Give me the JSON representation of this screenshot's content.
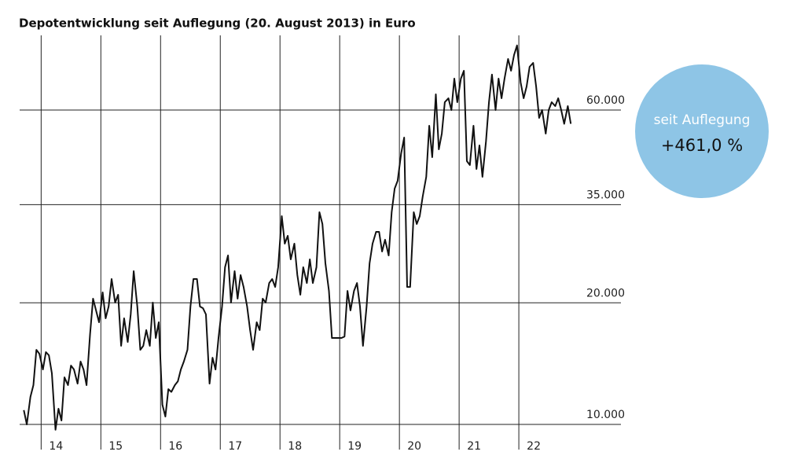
{
  "chart_data": {
    "type": "line",
    "title": "Depotentwicklung seit Auflegung (20. August 2013) in Euro",
    "annotations": [
      "seit Auflegung",
      "+461,0 %"
    ],
    "yscale": "log",
    "grid": true,
    "color": "#111111",
    "badge_color": "#8ec5e6",
    "xlim": [
      2013.64,
      2023.71
    ],
    "ylim": [
      9650,
      91800
    ],
    "xticks": [
      {
        "value": 2014,
        "label": "14"
      },
      {
        "value": 2015,
        "label": "15"
      },
      {
        "value": 2016,
        "label": "16"
      },
      {
        "value": 2017,
        "label": "17"
      },
      {
        "value": 2018,
        "label": "18"
      },
      {
        "value": 2019,
        "label": "19"
      },
      {
        "value": 2020,
        "label": "20"
      },
      {
        "value": 2021,
        "label": "21"
      },
      {
        "value": 2022,
        "label": "22"
      }
    ],
    "yticks": [
      {
        "value": 10000,
        "label": "10.000"
      },
      {
        "value": 20000,
        "label": "20.000"
      },
      {
        "value": 35000,
        "label": "35.000"
      },
      {
        "value": 60000,
        "label": "60.000"
      }
    ],
    "x": [
      2013.71,
      2013.76,
      2013.82,
      2013.87,
      2013.92,
      2013.97,
      2014.03,
      2014.08,
      2014.13,
      2014.18,
      2014.24,
      2014.29,
      2014.34,
      2014.39,
      2014.45,
      2014.5,
      2014.55,
      2014.61,
      2014.66,
      2014.71,
      2014.76,
      2014.82,
      2014.87,
      2014.92,
      2014.97,
      2015.03,
      2015.08,
      2015.13,
      2015.18,
      2015.24,
      2015.29,
      2015.34,
      2015.39,
      2015.45,
      2015.5,
      2015.55,
      2015.61,
      2015.66,
      2015.71,
      2015.76,
      2015.82,
      2015.87,
      2015.92,
      2015.97,
      2016.03,
      2016.08,
      2016.13,
      2016.18,
      2016.24,
      2016.29,
      2016.34,
      2016.39,
      2016.45,
      2016.5,
      2016.55,
      2016.61,
      2016.66,
      2016.71,
      2016.76,
      2016.82,
      2016.87,
      2016.92,
      2016.97,
      2017.03,
      2017.08,
      2017.13,
      2017.18,
      2017.24,
      2017.29,
      2017.34,
      2017.39,
      2017.45,
      2017.5,
      2017.55,
      2017.61,
      2017.66,
      2017.71,
      2017.76,
      2017.82,
      2017.87,
      2017.92,
      2017.97,
      2018.03,
      2018.08,
      2018.13,
      2018.18,
      2018.24,
      2018.29,
      2018.34,
      2018.39,
      2018.45,
      2018.5,
      2018.55,
      2018.61,
      2018.66,
      2018.71,
      2018.76,
      2018.82,
      2018.87,
      2018.92,
      2018.97,
      2019.03,
      2019.08,
      2019.13,
      2019.18,
      2019.24,
      2019.29,
      2019.34,
      2019.39,
      2019.45,
      2019.5,
      2019.55,
      2019.61,
      2019.66,
      2019.71,
      2019.76,
      2019.82,
      2019.87,
      2019.92,
      2019.97,
      2020.03,
      2020.08,
      2020.13,
      2020.18,
      2020.24,
      2020.29,
      2020.34,
      2020.39,
      2020.45,
      2020.5,
      2020.55,
      2020.61,
      2020.66,
      2020.71,
      2020.76,
      2020.82,
      2020.87,
      2020.92,
      2020.97,
      2021.03,
      2021.08,
      2021.13,
      2021.18,
      2021.24,
      2021.29,
      2021.34,
      2021.39,
      2021.45,
      2021.5,
      2021.55,
      2021.61,
      2021.66,
      2021.71,
      2021.76,
      2021.82,
      2021.87,
      2021.92,
      2021.97,
      2022.03,
      2022.08,
      2022.13,
      2022.18,
      2022.24,
      2022.29,
      2022.34,
      2022.39,
      2022.45,
      2022.5,
      2022.55,
      2022.61,
      2022.66,
      2022.71,
      2022.76,
      2022.82,
      2022.87
    ],
    "values": [
      10850,
      10000,
      11700,
      12510,
      15300,
      14960,
      13680,
      15100,
      14830,
      13380,
      9700,
      10940,
      10230,
      13080,
      12510,
      13990,
      13680,
      12620,
      14310,
      13680,
      12510,
      16740,
      20480,
      19150,
      17900,
      21220,
      18310,
      19580,
      22900,
      20020,
      20940,
      15650,
      18310,
      16000,
      18720,
      23950,
      19580,
      15300,
      15650,
      17120,
      15650,
      20020,
      16370,
      17900,
      11190,
      10460,
      12230,
      12040,
      12510,
      12790,
      13680,
      14310,
      15300,
      19580,
      22900,
      22900,
      19580,
      19400,
      18720,
      12620,
      14630,
      13680,
      16370,
      19580,
      24490,
      26200,
      20020,
      23950,
      20480,
      23420,
      21890,
      19580,
      17120,
      15300,
      17900,
      17120,
      20480,
      20020,
      22390,
      22900,
      21890,
      24490,
      32770,
      28020,
      29300,
      25620,
      28020,
      23420,
      20940,
      24490,
      22390,
      25620,
      22390,
      24490,
      33520,
      31340,
      25050,
      21410,
      16370,
      16370,
      16370,
      16370,
      16500,
      21410,
      19150,
      21410,
      22390,
      19580,
      15650,
      19580,
      25050,
      28020,
      29970,
      29970,
      26790,
      28650,
      26200,
      33520,
      38330,
      40090,
      46900,
      51290,
      21890,
      21890,
      33520,
      31340,
      32770,
      36660,
      41000,
      54850,
      45860,
      65620,
      47960,
      52450,
      62750,
      64170,
      60000,
      71770,
      62750,
      71770,
      75060,
      44840,
      43850,
      54850,
      42880,
      49040,
      41000,
      50150,
      62750,
      73400,
      60000,
      71770,
      64170,
      71770,
      80270,
      75060,
      82090,
      86700,
      70190,
      64170,
      68630,
      76760,
      78490,
      68630,
      57370,
      60000,
      52450,
      60000,
      62750,
      61360,
      64170,
      60000,
      55470,
      61360,
      55470
    ]
  }
}
